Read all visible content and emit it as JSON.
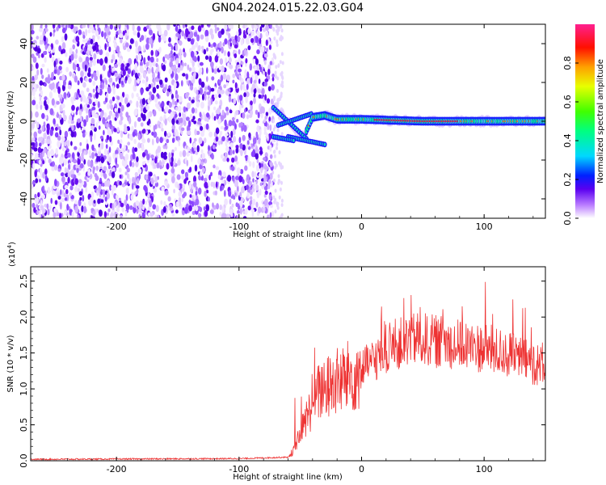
{
  "title": "GN04.2024.015.22.03.G04",
  "chart_data": [
    {
      "type": "heatmap",
      "xlabel": "Height of straight line (km)",
      "ylabel": "Frequency (Hz)",
      "xlim": [
        -270,
        150
      ],
      "ylim": [
        -50,
        50
      ],
      "x_ticks": [
        -200,
        -100,
        0,
        100
      ],
      "x_tick_labels": [
        "-200",
        "-100",
        "0",
        "100"
      ],
      "y_ticks": [
        -40,
        -20,
        0,
        20,
        40
      ],
      "y_tick_labels": [
        "-40",
        "-20",
        "0",
        "20",
        "40"
      ],
      "colorbar": {
        "label": "Normalized spectral amplitude",
        "range": [
          0,
          1
        ],
        "ticks": [
          0.0,
          0.2,
          0.4,
          0.6,
          0.8
        ],
        "tick_labels": [
          "0.0",
          "0.2",
          "0.4",
          "0.6",
          "0.8"
        ]
      },
      "noise_region_x": [
        -270,
        -72
      ],
      "signal_track": [
        {
          "x": -75,
          "y": 6
        },
        {
          "x": -70,
          "y": 7
        },
        {
          "x": -65,
          "y": 4
        },
        {
          "x": -60,
          "y": 1
        },
        {
          "x": -55,
          "y": -3
        },
        {
          "x": -50,
          "y": -8
        },
        {
          "x": -45,
          "y": -5
        },
        {
          "x": -40,
          "y": 2
        },
        {
          "x": -30,
          "y": 3
        },
        {
          "x": -20,
          "y": 1
        },
        {
          "x": 0,
          "y": 1
        },
        {
          "x": 50,
          "y": 0
        },
        {
          "x": 100,
          "y": 0
        },
        {
          "x": 150,
          "y": 0
        }
      ]
    },
    {
      "type": "line",
      "xlabel": "Height of straight line (km)",
      "ylabel": "SNR (10 * v/v)",
      "y_scale_label": "(x10",
      "y_scale_exponent": "4",
      "xlim": [
        -270,
        150
      ],
      "ylim": [
        0,
        2.7
      ],
      "x_ticks": [
        -200,
        -100,
        0,
        100
      ],
      "x_tick_labels": [
        "-200",
        "-100",
        "0",
        "100"
      ],
      "y_ticks": [
        0.0,
        0.5,
        1.0,
        1.5,
        2.0,
        2.5
      ],
      "y_tick_labels": [
        "0.0",
        "0.5",
        "1.0",
        "1.5",
        "2.0",
        "2.5"
      ],
      "color": "#ee3333",
      "envelope": [
        {
          "x": -270,
          "y": 0.02
        },
        {
          "x": -100,
          "y": 0.03
        },
        {
          "x": -60,
          "y": 0.05
        },
        {
          "x": -55,
          "y": 0.15
        },
        {
          "x": -45,
          "y": 0.6
        },
        {
          "x": -35,
          "y": 0.95
        },
        {
          "x": -20,
          "y": 1.1
        },
        {
          "x": -5,
          "y": 1.2
        },
        {
          "x": 10,
          "y": 1.4
        },
        {
          "x": 25,
          "y": 1.6
        },
        {
          "x": 45,
          "y": 1.7
        },
        {
          "x": 65,
          "y": 1.65
        },
        {
          "x": 85,
          "y": 1.6
        },
        {
          "x": 105,
          "y": 1.55
        },
        {
          "x": 125,
          "y": 1.45
        },
        {
          "x": 150,
          "y": 1.3
        }
      ]
    }
  ]
}
